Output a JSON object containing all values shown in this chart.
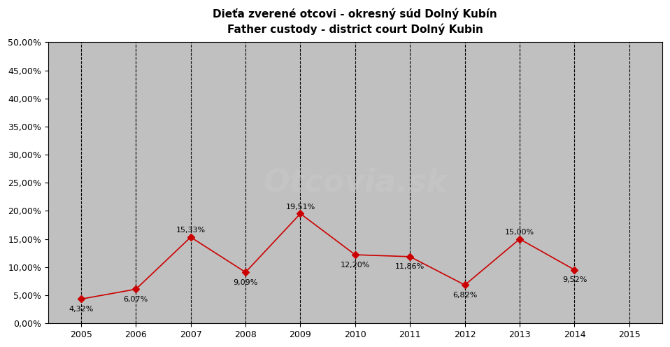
{
  "title_line1": "Dieťa zverené otcovi - okresný súd Dolný Kubín",
  "title_line2": "Father custody - district court Dolný Kubin",
  "years": [
    2005,
    2006,
    2007,
    2008,
    2009,
    2010,
    2011,
    2012,
    2013,
    2014
  ],
  "values": [
    4.32,
    6.07,
    15.33,
    9.09,
    19.51,
    12.2,
    11.86,
    6.82,
    15.0,
    9.52
  ],
  "labels": [
    "4,32%",
    "6,07%",
    "15,33%",
    "9,09%",
    "19,51%",
    "12,20%",
    "11,86%",
    "6,82%",
    "15,00%",
    "9,52%"
  ],
  "label_offsets_y": [
    -1.8,
    -1.8,
    1.2,
    -1.8,
    1.2,
    -1.8,
    -1.8,
    -1.8,
    1.2,
    -1.8
  ],
  "line_color": "#cc0000",
  "marker_color": "#cc0000",
  "plot_bg_color": "#c0c0c0",
  "outer_bg_color": "#ffffff",
  "gridline_color": "#000000",
  "ylim": [
    0,
    50
  ],
  "yticks": [
    0,
    5,
    10,
    15,
    20,
    25,
    30,
    35,
    40,
    45,
    50
  ],
  "xlim_min": 2004.4,
  "xlim_max": 2015.6,
  "xticks": [
    2005,
    2006,
    2007,
    2008,
    2009,
    2010,
    2011,
    2012,
    2013,
    2014,
    2015
  ],
  "vlines": [
    2005,
    2006,
    2007,
    2008,
    2009,
    2010,
    2011,
    2012,
    2013,
    2014,
    2015
  ],
  "watermark_color": "#c8c8c8",
  "watermark_alpha": 0.55,
  "watermark_fontsize": 32,
  "title_fontsize": 11,
  "label_fontsize": 8,
  "tick_fontsize": 9
}
